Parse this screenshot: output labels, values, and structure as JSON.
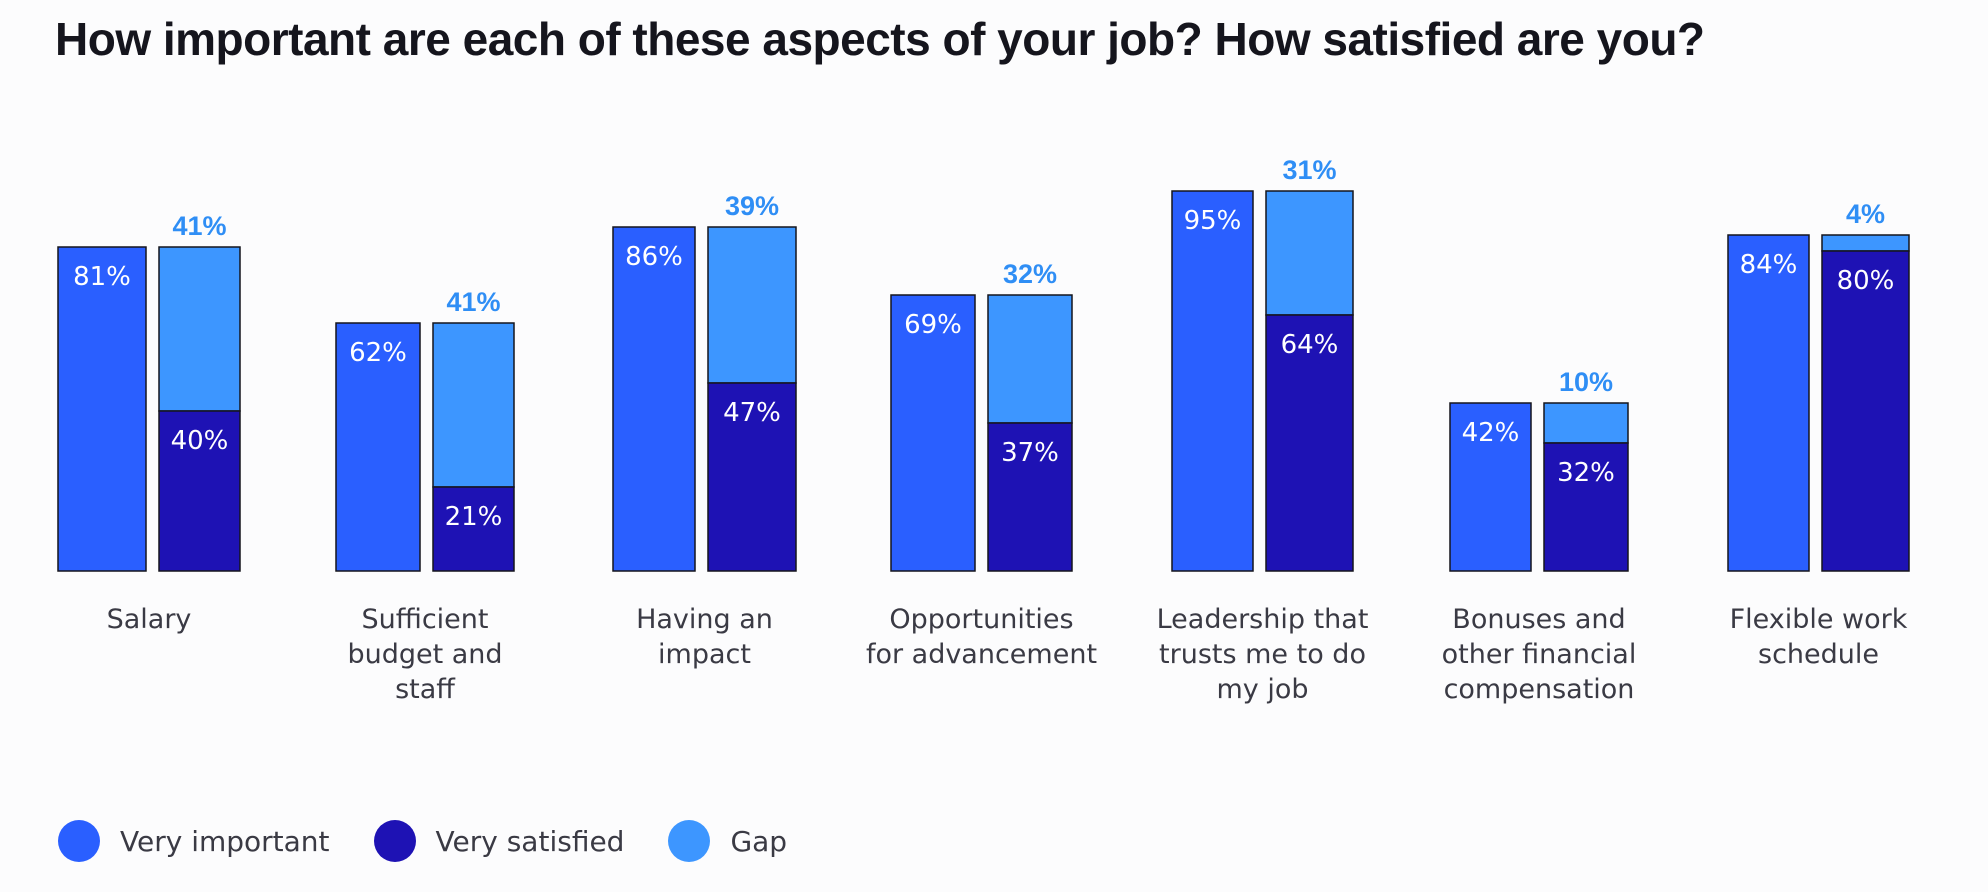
{
  "title": "How important are each of these aspects of your job? How satisfied are you?",
  "colors": {
    "very_important": "#2a5fff",
    "very_satisfied": "#1e12b4",
    "gap": "#3d96ff",
    "gap_label": "#2f8ef5",
    "bar_outline": "#15151d",
    "category_label": "#3a3a44"
  },
  "legend": [
    {
      "key": "very_important",
      "label": "Very important"
    },
    {
      "key": "very_satisfied",
      "label": "Very satisfied"
    },
    {
      "key": "gap",
      "label": "Gap"
    }
  ],
  "chart_data": {
    "type": "bar",
    "stacked_second_bar": true,
    "title": "How important are each of these aspects of your job? How satisfied are you?",
    "ylim": [
      0,
      100
    ],
    "grid": false,
    "legend_position": "bottom-left",
    "categories": [
      {
        "label_lines": [
          "Salary"
        ],
        "very_important": 81,
        "very_satisfied": 40,
        "gap": 41
      },
      {
        "label_lines": [
          "Sufficient",
          "budget and",
          "staff"
        ],
        "very_important": 62,
        "very_satisfied": 21,
        "gap": 41
      },
      {
        "label_lines": [
          "Having an",
          "impact"
        ],
        "very_important": 86,
        "very_satisfied": 47,
        "gap": 39
      },
      {
        "label_lines": [
          "Opportunities",
          "for advancement"
        ],
        "very_important": 69,
        "very_satisfied": 37,
        "gap": 32
      },
      {
        "label_lines": [
          "Leadership that",
          "trusts me to do",
          "my job"
        ],
        "very_important": 95,
        "very_satisfied": 64,
        "gap": 31
      },
      {
        "label_lines": [
          "Bonuses and",
          "other financial",
          "compensation"
        ],
        "very_important": 42,
        "very_satisfied": 32,
        "gap": 10
      },
      {
        "label_lines": [
          "Flexible work",
          "schedule"
        ],
        "very_important": 84,
        "very_satisfied": 80,
        "gap": 4
      }
    ],
    "series": [
      {
        "name": "Very important",
        "key": "very_important"
      },
      {
        "name": "Very satisfied",
        "key": "very_satisfied"
      },
      {
        "name": "Gap",
        "key": "gap"
      }
    ]
  }
}
